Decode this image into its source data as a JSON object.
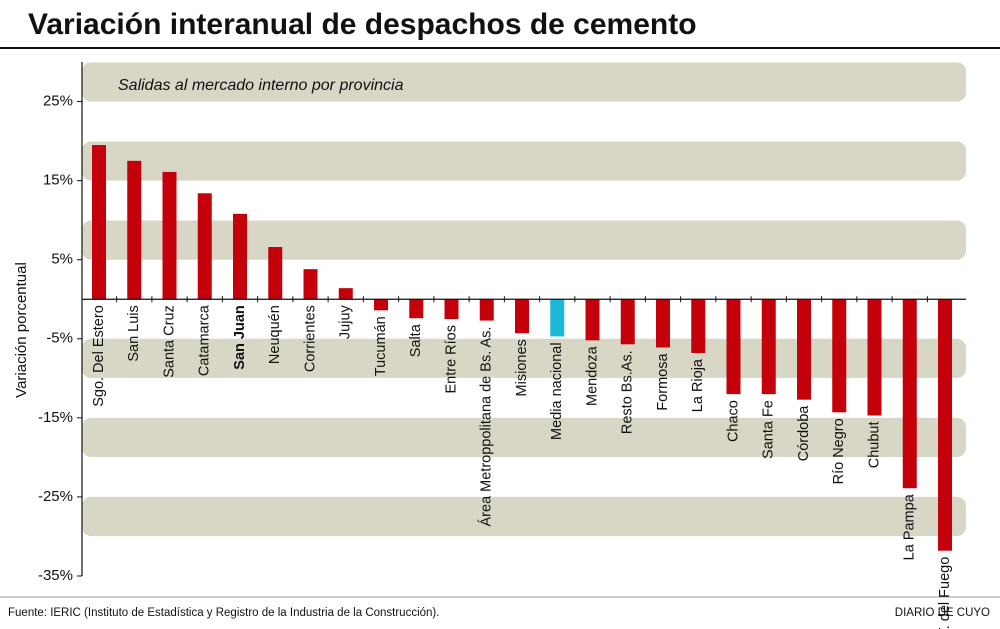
{
  "chart_data": {
    "type": "bar",
    "title": "Variación interanual de despachos de cemento",
    "subtitle": "Salidas al mercado interno por provincia",
    "ylabel": "Variación porcentual",
    "categories": [
      "Sgo. Del Estero",
      "San Luis",
      "Santa Cruz",
      "Catamarca",
      "San Juan",
      "Neuquén",
      "Corrientes",
      "Jujuy",
      "Tucumán",
      "Salta",
      "Entre Ríos",
      "Área Metroppolitana de Bs. As.",
      "Misiones",
      "Media nacional",
      "Mendoza",
      "Resto Bs.As.",
      "Formosa",
      "La Rioja",
      "Chaco",
      "Santa Fe",
      "Córdoba",
      "Río Negro",
      "Chubut",
      "La Pampa",
      "T. del Fuego"
    ],
    "values": [
      19.5,
      17.5,
      16.1,
      13.4,
      10.8,
      6.6,
      3.8,
      1.4,
      -1.4,
      -2.4,
      -2.5,
      -2.7,
      -4.3,
      -4.7,
      -5.2,
      -5.7,
      -6.1,
      -6.8,
      -12.0,
      -12.0,
      -12.7,
      -14.3,
      -14.7,
      -23.9,
      -31.8
    ],
    "colors": [
      "#c4000b",
      "#c4000b",
      "#c4000b",
      "#c4000b",
      "#c4000b",
      "#c4000b",
      "#c4000b",
      "#c4000b",
      "#c4000b",
      "#c4000b",
      "#c4000b",
      "#c4000b",
      "#c4000b",
      "#1bb8d8",
      "#c4000b",
      "#c4000b",
      "#c4000b",
      "#c4000b",
      "#c4000b",
      "#c4000b",
      "#c4000b",
      "#c4000b",
      "#c4000b",
      "#c4000b",
      "#c4000b"
    ],
    "ylim": [
      -35,
      30
    ],
    "yticks": [
      {
        "value": 25,
        "label": "25%"
      },
      {
        "value": 15,
        "label": "15%"
      },
      {
        "value": 5,
        "label": "5%"
      },
      {
        "value": -5,
        "label": "-5%"
      },
      {
        "value": -15,
        "label": "-15%"
      },
      {
        "value": -25,
        "label": "-25%"
      },
      {
        "value": -35,
        "label": "-35%"
      }
    ],
    "source": "Fuente: IERIC (Instituto de Estadística y Registro de la Industria de la Construcción).",
    "credit": "DIARIO DE CUYO"
  }
}
